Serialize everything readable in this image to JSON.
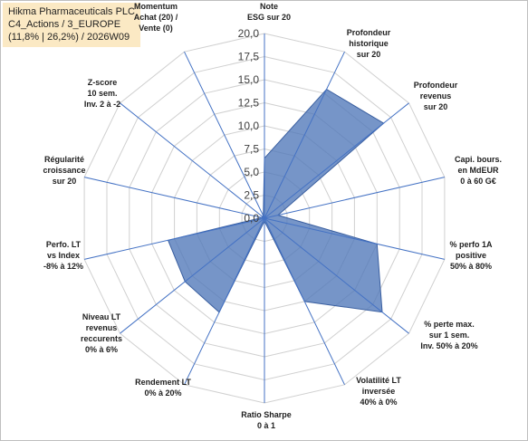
{
  "header": {
    "line1": "Hikma Pharmaceuticals PLC",
    "line2": "C4_Actions / 3_EUROPE",
    "line3": "(11,8% | 26,2%) / 2026W09"
  },
  "colors": {
    "fill": "#4f77b8",
    "fillOpacity": 0.78,
    "stroke": "#3a5fa0",
    "axis": "#4472c4",
    "grid": "#d0d0d0",
    "titleBg": "#fbe9c4"
  },
  "chart_data": {
    "type": "radar",
    "title": "Hikma Pharmaceuticals PLC",
    "rlim": [
      0,
      20
    ],
    "ticks": [
      "0,0",
      "2,5",
      "5,0",
      "7,5",
      "10,0",
      "12,5",
      "15,0",
      "17,5",
      "20,0"
    ],
    "tick_values": [
      0,
      2.5,
      5,
      7.5,
      10,
      12.5,
      15,
      17.5,
      20
    ],
    "grid": true,
    "categories": [
      [
        "Note",
        "ESG sur 20"
      ],
      [
        "Profondeur",
        "historique",
        "sur 20"
      ],
      [
        "Profondeur",
        "revenus",
        "sur 20"
      ],
      [
        "Capi. bours.",
        "en MdEUR",
        "0 à 60 G€"
      ],
      [
        "% perfo 1A",
        "positive",
        "50% à 80%"
      ],
      [
        "% perte max.",
        "sur 1 sem.",
        "Inv. 50% à 20%"
      ],
      [
        "Volatilité LT",
        "inversée",
        "40% à 0%"
      ],
      [
        "Ratio Sharpe",
        "0 à 1"
      ],
      [
        "Rendement LT",
        "0% à 20%"
      ],
      [
        "Niveau LT",
        "revenus",
        "reccurents",
        "0% à 6%"
      ],
      [
        "Perfo. LT",
        "vs Index",
        "-8% à 12%"
      ],
      [
        "Régularité",
        "croissance",
        "sur 20"
      ],
      [
        "Z-score",
        "10 sem.",
        "Inv. 2 à -2"
      ],
      [
        "Momentum",
        "Achat (20) /",
        "Vente (0)"
      ]
    ],
    "series": [
      {
        "values": [
          6.5,
          15.5,
          16.5,
          1.5,
          12.5,
          16.3,
          10.0,
          0.3,
          11.3,
          11.0,
          10.7,
          0.3,
          0.3,
          0.3
        ]
      }
    ]
  }
}
